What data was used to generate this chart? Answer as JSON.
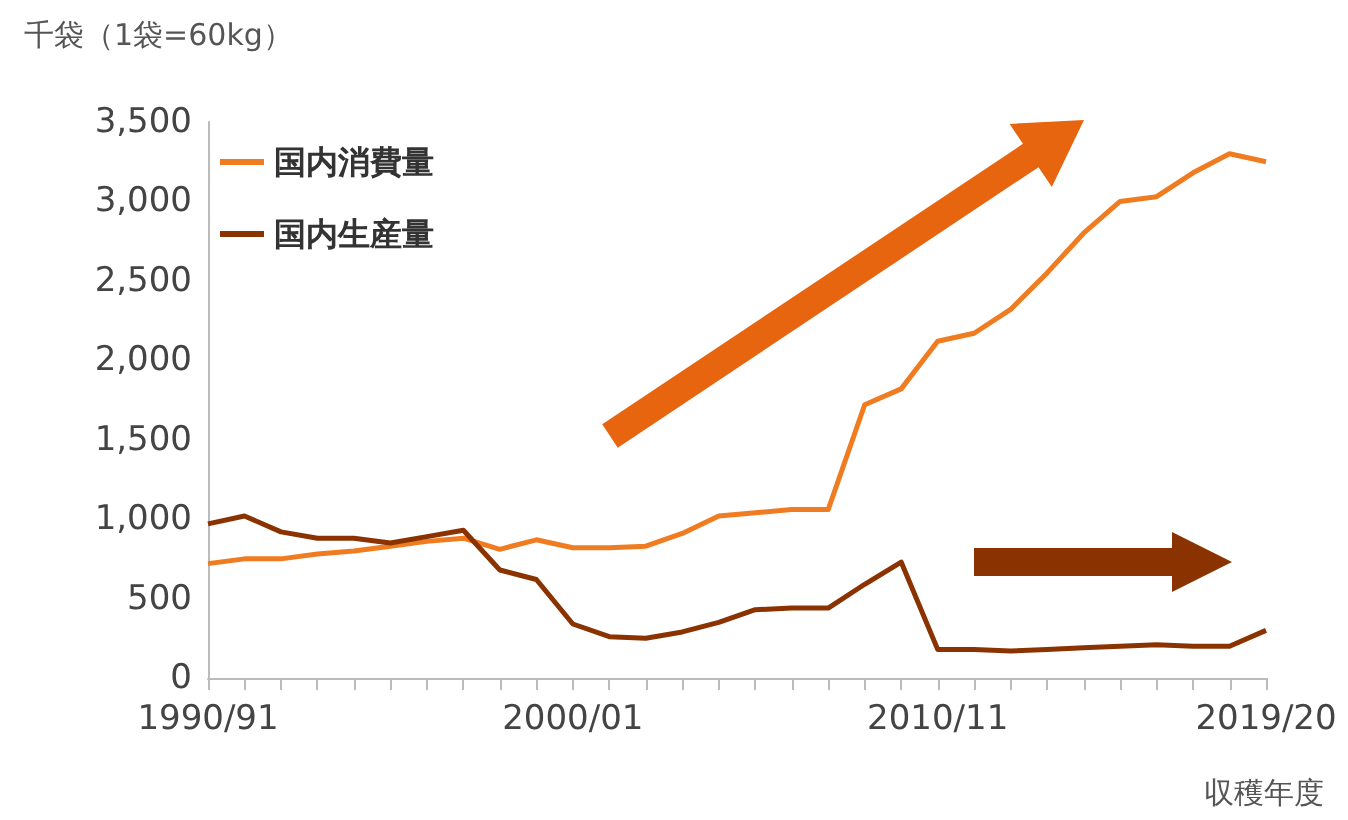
{
  "chart_data": {
    "type": "line",
    "xlabel": "収穫年度",
    "ylabel": "千袋（1袋=60kg）",
    "categories": [
      "1990/91",
      null,
      null,
      null,
      null,
      null,
      null,
      null,
      null,
      null,
      "2000/01",
      null,
      null,
      null,
      null,
      null,
      null,
      null,
      null,
      null,
      "2010/11",
      null,
      null,
      null,
      null,
      null,
      null,
      null,
      null,
      "2019/20"
    ],
    "series": [
      {
        "name": "国内消費量",
        "color": "#f07c22",
        "values": [
          720,
          750,
          750,
          780,
          800,
          830,
          860,
          880,
          810,
          870,
          820,
          820,
          830,
          910,
          1020,
          1040,
          1060,
          1060,
          1720,
          1820,
          2120,
          2170,
          2320,
          2550,
          2800,
          3000,
          3030,
          3180,
          3300,
          3250
        ]
      },
      {
        "name": "国内生産量",
        "color": "#8b3300",
        "values": [
          970,
          1020,
          920,
          880,
          880,
          850,
          890,
          930,
          680,
          620,
          340,
          260,
          250,
          290,
          350,
          430,
          440,
          440,
          590,
          730,
          180,
          180,
          170,
          180,
          190,
          200,
          210,
          200,
          200,
          300
        ]
      }
    ],
    "ylim": [
      0,
      3500
    ],
    "yticks": [
      0,
      500,
      {
        "value": 1000,
        "label": "1,000"
      },
      {
        "value": 1500,
        "label": "1,500"
      },
      {
        "value": 2000,
        "label": "2,000"
      },
      {
        "value": 2500,
        "label": "2,500"
      },
      {
        "value": 3000,
        "label": "3,000"
      },
      {
        "value": 3500,
        "label": "3,500"
      }
    ],
    "grid": false,
    "legend": "top left",
    "marker": "none",
    "line_style": "solid"
  }
}
